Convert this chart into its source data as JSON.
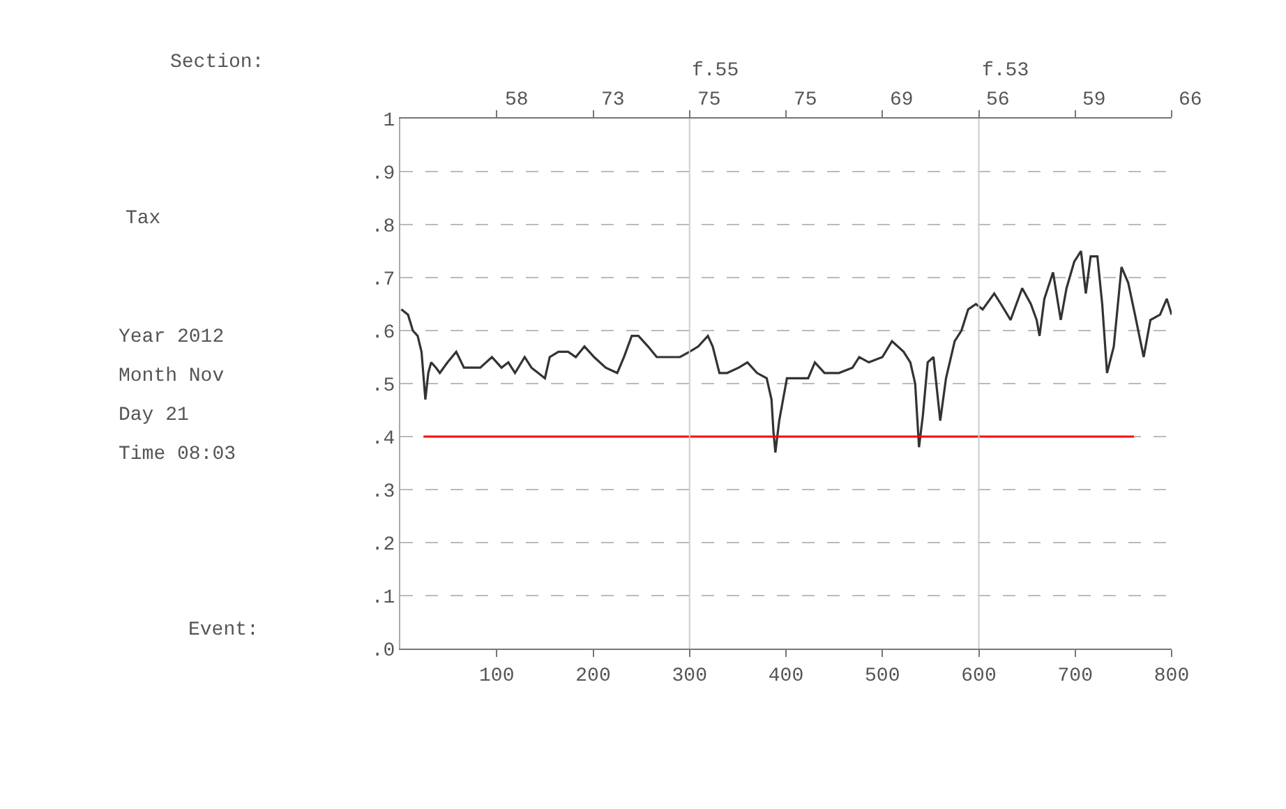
{
  "chart_data": {
    "type": "line",
    "annotations": [
      "Section:",
      "Tax",
      "Year 2012",
      "Month Nov",
      "Day 21",
      "Time 08:03",
      "Event:",
      "58",
      "73",
      "75",
      "75",
      "69",
      "56",
      "59",
      "66"
    ],
    "xlim": [
      0,
      800
    ],
    "xticks": [
      100,
      200,
      300,
      400,
      500,
      600,
      700,
      800
    ],
    "ylim": [
      0,
      1
    ],
    "yticks": [
      {
        "value": 0,
        "label": ".0"
      },
      {
        "value": 0.1,
        "label": ".1"
      },
      {
        "value": 0.2,
        "label": ".2"
      },
      {
        "value": 0.3,
        "label": ".3"
      },
      {
        "value": 0.4,
        "label": ".4"
      },
      {
        "value": 0.5,
        "label": ".5"
      },
      {
        "value": 0.6,
        "label": ".6"
      },
      {
        "value": 0.7,
        "label": ".7"
      },
      {
        "value": 0.8,
        "label": ".8"
      },
      {
        "value": 0.9,
        "label": ".9"
      },
      1
    ],
    "grid": "y",
    "marker": "none",
    "line_style": "solid",
    "ref_lines": [
      {
        "axis": "x",
        "value": 300,
        "label": "f.55",
        "color": "#cccccc"
      },
      {
        "axis": "x",
        "value": 600,
        "label": "f.53",
        "color": "#cccccc"
      }
    ],
    "series": [
      {
        "color": "#333333",
        "x": [
          1,
          8,
          13,
          18,
          22,
          26,
          29,
          32,
          37,
          41,
          49,
          58,
          66,
          83,
          95,
          105,
          112,
          119,
          129,
          136,
          143,
          150,
          155,
          164,
          174,
          182,
          191,
          201,
          213,
          225,
          232,
          240,
          247,
          257,
          266,
          278,
          290,
          300,
          309,
          319,
          324,
          331,
          339,
          351,
          360,
          370,
          380,
          385,
          387,
          389,
          393,
          397,
          401,
          411,
          423,
          430,
          440,
          455,
          469,
          476,
          486,
          500,
          510,
          522,
          529,
          534,
          538,
          542,
          547,
          553,
          560,
          566,
          575,
          582,
          589,
          597,
          604,
          616,
          623,
          633,
          645,
          654,
          660,
          663,
          668,
          677,
          685,
          691,
          699,
          706,
          711,
          716,
          723,
          728,
          733,
          740,
          748,
          755,
          762,
          771,
          778,
          788,
          795,
          800
        ],
        "values": [
          0.64,
          0.63,
          0.6,
          0.59,
          0.56,
          0.47,
          0.52,
          0.54,
          0.53,
          0.52,
          0.54,
          0.56,
          0.53,
          0.53,
          0.55,
          0.53,
          0.54,
          0.52,
          0.55,
          0.53,
          0.52,
          0.51,
          0.55,
          0.56,
          0.56,
          0.55,
          0.57,
          0.55,
          0.53,
          0.52,
          0.55,
          0.59,
          0.59,
          0.57,
          0.55,
          0.55,
          0.55,
          0.56,
          0.57,
          0.59,
          0.57,
          0.52,
          0.52,
          0.53,
          0.54,
          0.52,
          0.51,
          0.47,
          0.41,
          0.37,
          0.43,
          0.47,
          0.51,
          0.51,
          0.51,
          0.54,
          0.52,
          0.52,
          0.53,
          0.55,
          0.54,
          0.55,
          0.58,
          0.56,
          0.54,
          0.5,
          0.38,
          0.44,
          0.54,
          0.55,
          0.43,
          0.51,
          0.58,
          0.6,
          0.64,
          0.65,
          0.64,
          0.67,
          0.65,
          0.62,
          0.68,
          0.65,
          0.62,
          0.59,
          0.66,
          0.71,
          0.62,
          0.68,
          0.73,
          0.75,
          0.67,
          0.74,
          0.74,
          0.65,
          0.52,
          0.57,
          0.72,
          0.69,
          0.63,
          0.55,
          0.62,
          0.63,
          0.66,
          0.63
        ]
      },
      {
        "color": "#ff0000",
        "x": [
          24,
          761
        ],
        "values": [
          0.4,
          0.4
        ]
      }
    ]
  }
}
